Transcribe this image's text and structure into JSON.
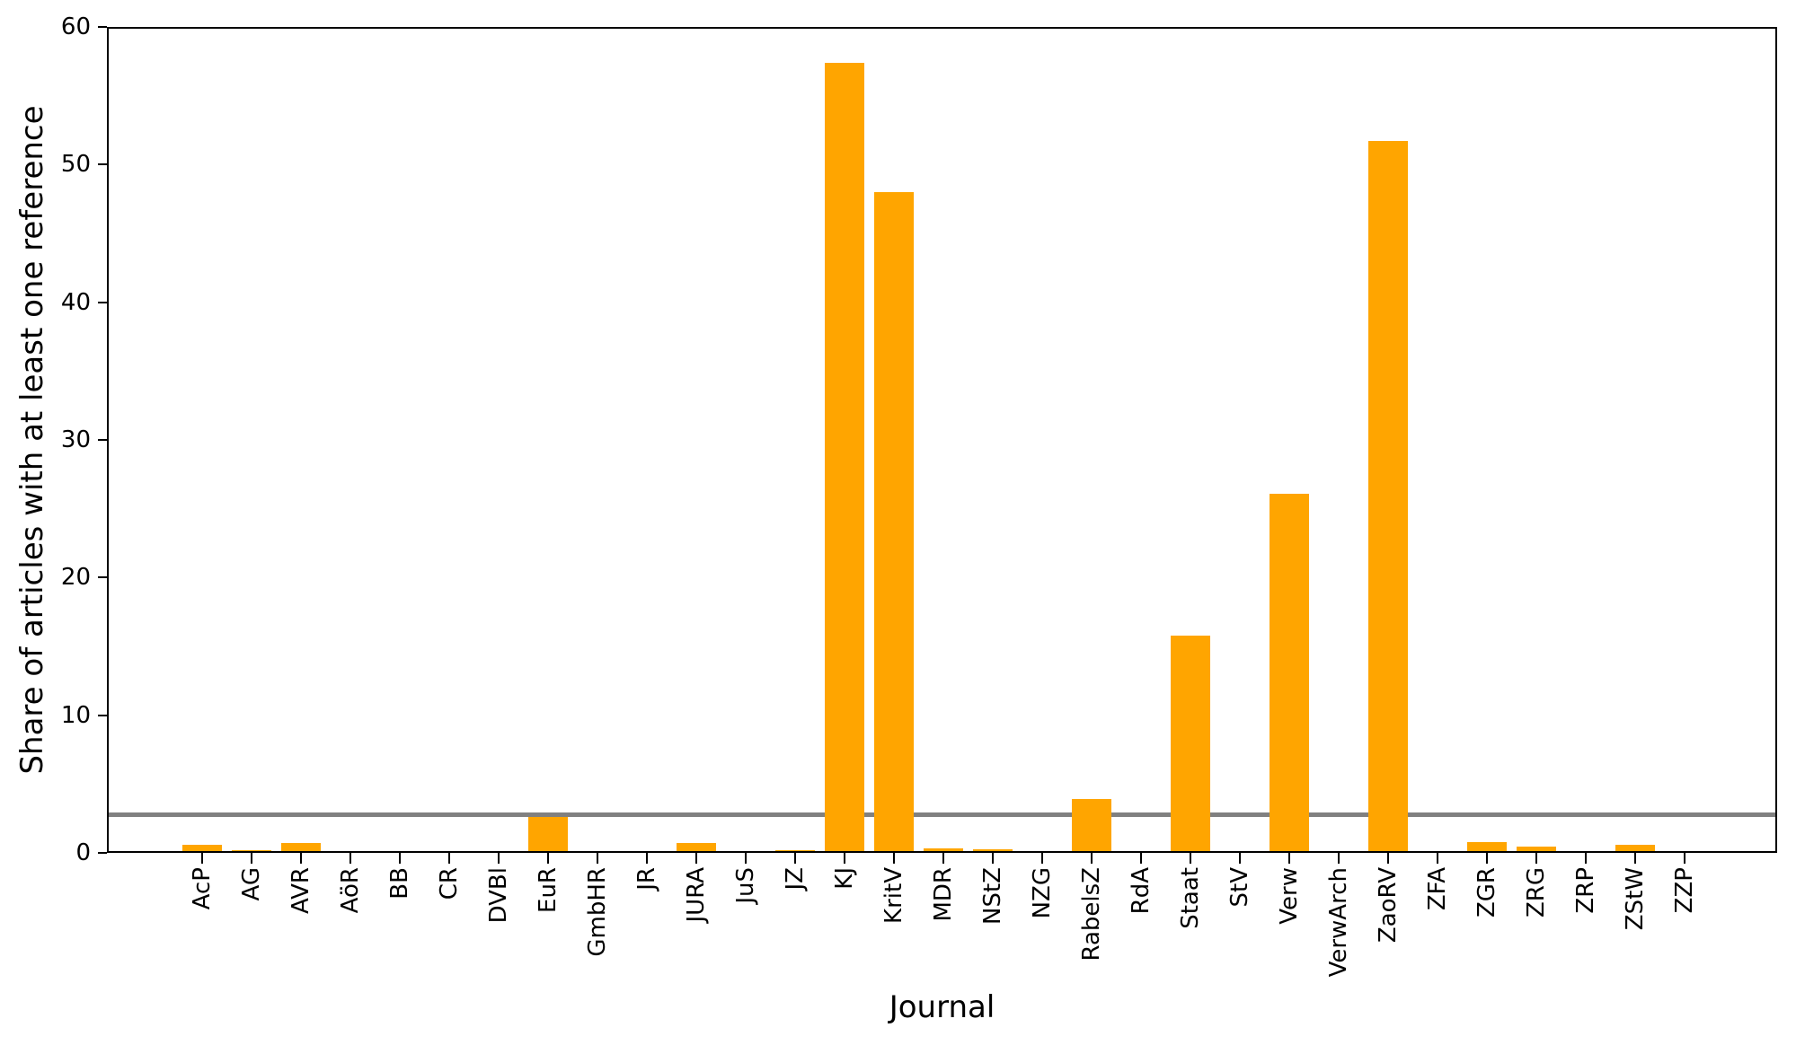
{
  "chart_data": {
    "type": "bar",
    "title": "",
    "xlabel": "Journal",
    "ylabel": "Share of articles with at least one reference",
    "categories": [
      "AcP",
      "AG",
      "AVR",
      "AöR",
      "BB",
      "CR",
      "DVBl",
      "EuR",
      "GmbHR",
      "JR",
      "JURA",
      "JuS",
      "JZ",
      "KJ",
      "KritV",
      "MDR",
      "NStZ",
      "NZG",
      "RabelsZ",
      "RdA",
      "Staat",
      "StV",
      "Verw",
      "VerwArch",
      "ZaoRV",
      "ZFA",
      "ZGR",
      "ZRG",
      "ZRP",
      "ZStW",
      "ZZP"
    ],
    "values": [
      0.6,
      0.2,
      0.7,
      0,
      0,
      0.15,
      0,
      2.6,
      0,
      0.15,
      0.7,
      0,
      0.2,
      57.4,
      48.0,
      0.3,
      0.25,
      0,
      3.9,
      0,
      15.8,
      0,
      26.1,
      0,
      51.7,
      0,
      0.8,
      0.45,
      0,
      0.6,
      0
    ],
    "ylim": [
      0,
      60
    ],
    "yticks": [
      0,
      10,
      20,
      30,
      40,
      50,
      60
    ],
    "reference_line": 2.8,
    "bar_color": "#FFA500",
    "reference_line_color": "#808080",
    "axis_color": "#000000",
    "background_color": "#FFFFFF",
    "grid": "off",
    "legend": "none",
    "xtick_rotation_deg": 90
  }
}
